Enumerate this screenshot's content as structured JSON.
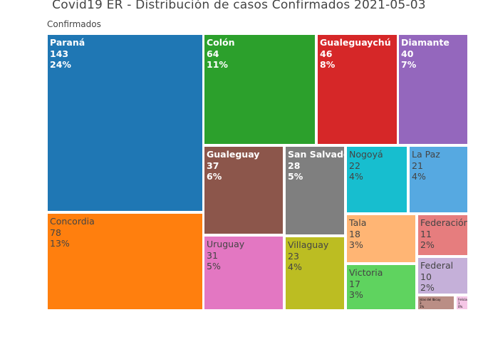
{
  "chart_data": {
    "type": "treemap",
    "title": "Covid19 ER - Distribución de casos Confirmados 2021-05-03",
    "root": "Confirmados",
    "items": [
      {
        "label": "Paraná",
        "value": 143,
        "percent": "24%",
        "color": "#1f77b4",
        "text": "dark"
      },
      {
        "label": "Concordia",
        "value": 78,
        "percent": "13%",
        "color": "#ff7f0e",
        "text": "light"
      },
      {
        "label": "Colón",
        "value": 64,
        "percent": "11%",
        "color": "#2ca02c",
        "text": "dark"
      },
      {
        "label": "Gualeguaychú",
        "value": 46,
        "percent": "8%",
        "color": "#d62728",
        "text": "dark"
      },
      {
        "label": "Diamante",
        "value": 40,
        "percent": "7%",
        "color": "#9467bd",
        "text": "dark"
      },
      {
        "label": "Gualeguay",
        "value": 37,
        "percent": "6%",
        "color": "#8c564b",
        "text": "dark"
      },
      {
        "label": "San Salvador",
        "value": 28,
        "percent": "5%",
        "color": "#7f7f7f",
        "text": "dark"
      },
      {
        "label": "Nogoyá",
        "value": 22,
        "percent": "4%",
        "color": "#17becf",
        "text": "light"
      },
      {
        "label": "La Paz",
        "value": 21,
        "percent": "4%",
        "color": "#56a9e1",
        "text": "light"
      },
      {
        "label": "Uruguay",
        "value": 31,
        "percent": "5%",
        "color": "#e377c2",
        "text": "light"
      },
      {
        "label": "Villaguay",
        "value": 23,
        "percent": "4%",
        "color": "#bcbd22",
        "text": "light"
      },
      {
        "label": "Tala",
        "value": 18,
        "percent": "3%",
        "color": "#ffb574",
        "text": "light"
      },
      {
        "label": "Victoria",
        "value": 17,
        "percent": "3%",
        "color": "#5fd35f",
        "text": "light"
      },
      {
        "label": "Federación",
        "value": 11,
        "percent": "2%",
        "color": "#e67d7e",
        "text": "light"
      },
      {
        "label": "Federal",
        "value": 10,
        "percent": "2%",
        "color": "#c5b0d9",
        "text": "light"
      },
      {
        "label": "Islas del Ibicuy",
        "value": 3,
        "percent": "1%",
        "color": "#ba8e85",
        "text": "tiny"
      },
      {
        "label": "Feliciano",
        "value": 1,
        "percent": "0%",
        "color": "#f5c6e6",
        "text": "tiny"
      }
    ]
  }
}
